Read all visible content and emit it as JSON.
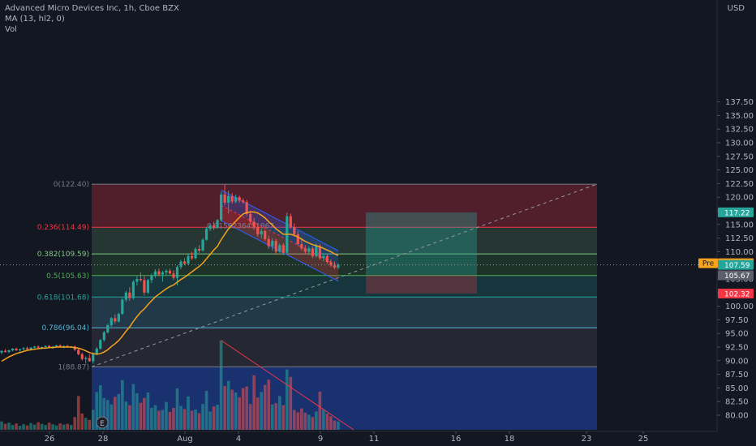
{
  "legend": {
    "symbol": "Advanced Micro Devices Inc, 1h, Cboe BZX",
    "ma": "MA (13, hl2, 0)",
    "vol": "Vol"
  },
  "chart_data": {
    "type": "candlestick",
    "currency": "USD",
    "y_ticks": [
      "137.50",
      "135.00",
      "132.50",
      "130.00",
      "127.50",
      "125.00",
      "122.50",
      "120.00",
      "117.50",
      "115.00",
      "112.50",
      "110.00",
      "107.50",
      "105.00",
      "102.50",
      "100.00",
      "97.50",
      "95.00",
      "92.50",
      "90.00",
      "87.50",
      "85.00",
      "82.50",
      "80.00"
    ],
    "x_ticks": [
      "26",
      "28",
      "Aug",
      "4",
      "9",
      "11",
      "16",
      "18",
      "23",
      "25"
    ],
    "fib_levels": [
      {
        "label": "0(122.40)",
        "price": 122.4,
        "color": "#787b86"
      },
      {
        "label": "0.236(114.49)",
        "price": 114.49,
        "color": "#f23645"
      },
      {
        "label": "0.382(109.59)",
        "price": 109.59,
        "color": "#81c784"
      },
      {
        "label": "0.5(105.63)",
        "price": 105.63,
        "color": "#4caf50"
      },
      {
        "label": "0.618(101.68)",
        "price": 101.68,
        "color": "#26a69a"
      },
      {
        "label": "0.786(96.04)",
        "price": 96.04,
        "color": "#56b4d3"
      },
      {
        "label": "1(88.87)",
        "price": 88.87,
        "color": "#787b86"
      }
    ],
    "channel_label": "0.9156236451967",
    "position": {
      "target": 117.22,
      "entry": 105.67,
      "stop": 102.32
    },
    "price_tags": [
      {
        "prefix": "",
        "text": "117.22",
        "price": 117.22,
        "color": "#26a69a"
      },
      {
        "prefix": "Pre",
        "text": "107.88",
        "price": 107.88,
        "color": "#f7a21b"
      },
      {
        "prefix": "",
        "text": "107.59",
        "price": 107.59,
        "color": "#26a69a"
      },
      {
        "prefix": "",
        "text": "105.67",
        "price": 105.67,
        "color": "#5d606b"
      },
      {
        "prefix": "",
        "text": "102.32",
        "price": 102.32,
        "color": "#f23645"
      }
    ],
    "candles": [
      [
        91.5,
        91.9,
        91.2,
        91.8
      ],
      [
        91.8,
        92.1,
        91.5,
        91.6
      ],
      [
        91.6,
        92.0,
        91.4,
        91.9
      ],
      [
        91.9,
        92.3,
        91.7,
        92.2
      ],
      [
        92.2,
        92.4,
        91.8,
        91.9
      ],
      [
        91.9,
        92.2,
        91.7,
        92.1
      ],
      [
        92.1,
        92.5,
        91.9,
        92.3
      ],
      [
        92.3,
        92.6,
        92.0,
        92.1
      ],
      [
        92.1,
        92.5,
        91.9,
        92.4
      ],
      [
        92.4,
        92.7,
        92.2,
        92.6
      ],
      [
        92.6,
        92.8,
        92.3,
        92.4
      ],
      [
        92.4,
        92.6,
        92.1,
        92.5
      ],
      [
        92.5,
        92.8,
        92.3,
        92.7
      ],
      [
        92.7,
        92.9,
        92.4,
        92.5
      ],
      [
        92.5,
        92.7,
        92.2,
        92.6
      ],
      [
        92.6,
        92.9,
        92.4,
        92.8
      ],
      [
        92.8,
        93.0,
        92.5,
        92.6
      ],
      [
        92.6,
        92.8,
        92.3,
        92.7
      ],
      [
        92.7,
        92.9,
        92.4,
        92.5
      ],
      [
        92.5,
        92.7,
        92.3,
        92.6
      ],
      [
        92.6,
        92.8,
        91.8,
        92.0
      ],
      [
        92.0,
        92.3,
        91.0,
        91.2
      ],
      [
        91.2,
        91.5,
        90.0,
        90.3
      ],
      [
        90.3,
        90.8,
        89.5,
        90.5
      ],
      [
        90.5,
        91.2,
        89.8,
        89.9
      ],
      [
        89.9,
        91.5,
        89.5,
        91.3
      ],
      [
        91.3,
        92.5,
        91.0,
        92.2
      ],
      [
        92.2,
        94.0,
        92.0,
        93.8
      ],
      [
        93.8,
        95.5,
        93.5,
        95.2
      ],
      [
        95.2,
        96.8,
        95.0,
        96.5
      ],
      [
        96.5,
        98.0,
        96.2,
        97.8
      ],
      [
        97.8,
        98.5,
        96.8,
        97.2
      ],
      [
        97.2,
        98.8,
        97.0,
        98.6
      ],
      [
        98.6,
        101.5,
        98.4,
        101.2
      ],
      [
        101.2,
        102.8,
        100.8,
        102.5
      ],
      [
        102.5,
        103.5,
        101.0,
        101.5
      ],
      [
        101.5,
        104.8,
        101.2,
        104.5
      ],
      [
        104.5,
        105.5,
        103.8,
        105.0
      ],
      [
        105.0,
        106.2,
        104.5,
        104.8
      ],
      [
        104.8,
        105.5,
        102.0,
        102.5
      ],
      [
        102.5,
        105.0,
        102.2,
        104.8
      ],
      [
        104.8,
        106.0,
        104.2,
        105.6
      ],
      [
        105.6,
        106.8,
        105.2,
        106.4
      ],
      [
        106.4,
        106.9,
        105.5,
        105.8
      ],
      [
        105.8,
        106.5,
        104.5,
        106.2
      ],
      [
        106.2,
        106.8,
        105.6,
        106.5
      ],
      [
        106.5,
        106.9,
        105.8,
        106.0
      ],
      [
        106.0,
        106.6,
        104.8,
        105.2
      ],
      [
        105.2,
        107.5,
        103.8,
        107.2
      ],
      [
        107.2,
        108.5,
        106.8,
        108.2
      ],
      [
        108.2,
        108.8,
        107.5,
        107.8
      ],
      [
        107.8,
        109.5,
        107.6,
        109.2
      ],
      [
        109.2,
        110.0,
        108.5,
        108.8
      ],
      [
        108.8,
        110.8,
        108.6,
        110.5
      ],
      [
        110.5,
        111.2,
        109.8,
        110.2
      ],
      [
        110.2,
        112.5,
        110.0,
        112.2
      ],
      [
        112.2,
        114.5,
        112.0,
        114.2
      ],
      [
        114.2,
        115.2,
        113.8,
        114.8
      ],
      [
        114.8,
        115.5,
        114.0,
        114.4
      ],
      [
        114.4,
        116.0,
        114.2,
        115.8
      ],
      [
        115.8,
        121.0,
        115.5,
        120.5
      ],
      [
        120.5,
        122.4,
        118.5,
        119.0
      ],
      [
        119.0,
        121.2,
        117.0,
        120.2
      ],
      [
        120.2,
        120.8,
        118.8,
        119.2
      ],
      [
        119.2,
        120.5,
        118.9,
        120.0
      ],
      [
        120.0,
        120.3,
        119.0,
        119.4
      ],
      [
        119.4,
        119.8,
        118.8,
        119.1
      ],
      [
        119.1,
        119.5,
        116.5,
        116.9
      ],
      [
        116.9,
        117.5,
        115.0,
        115.5
      ],
      [
        115.5,
        116.2,
        114.0,
        114.5
      ],
      [
        114.5,
        115.0,
        112.8,
        113.2
      ],
      [
        113.2,
        114.2,
        112.5,
        113.8
      ],
      [
        113.8,
        114.0,
        112.0,
        112.3
      ],
      [
        112.3,
        113.0,
        110.5,
        111.0
      ],
      [
        111.0,
        112.5,
        110.2,
        112.0
      ],
      [
        112.0,
        112.4,
        109.5,
        110.0
      ],
      [
        110.0,
        111.5,
        109.8,
        111.2
      ],
      [
        111.2,
        111.6,
        109.4,
        109.8
      ],
      [
        109.8,
        117.2,
        109.6,
        116.5
      ],
      [
        116.5,
        117.0,
        114.2,
        114.5
      ],
      [
        114.5,
        115.2,
        112.8,
        113.2
      ],
      [
        113.2,
        113.8,
        111.0,
        111.4
      ],
      [
        111.4,
        112.5,
        110.2,
        110.6
      ],
      [
        110.6,
        111.2,
        109.5,
        110.0
      ],
      [
        110.0,
        111.0,
        109.4,
        110.6
      ],
      [
        110.6,
        111.0,
        108.8,
        109.2
      ],
      [
        109.2,
        111.5,
        108.9,
        111.0
      ],
      [
        111.0,
        111.4,
        108.5,
        108.8
      ],
      [
        108.8,
        109.6,
        108.2,
        109.2
      ],
      [
        109.2,
        109.5,
        107.8,
        108.1
      ],
      [
        108.1,
        108.6,
        107.2,
        107.5
      ],
      [
        107.5,
        108.2,
        106.8,
        107.1
      ],
      [
        107.1,
        107.9,
        106.8,
        107.6
      ]
    ],
    "ma": [
      89.9,
      90.3,
      90.7,
      91.0,
      91.3,
      91.5,
      91.7,
      91.9,
      92.0,
      92.1,
      92.2,
      92.3,
      92.3,
      92.4,
      92.4,
      92.5,
      92.5,
      92.5,
      92.5,
      92.5,
      92.4,
      92.3,
      92.1,
      91.8,
      91.5,
      91.3,
      91.2,
      91.3,
      91.6,
      92.0,
      92.6,
      93.1,
      93.7,
      94.5,
      95.4,
      96.2,
      97.2,
      98.1,
      98.9,
      99.5,
      100.3,
      101.0,
      101.7,
      102.2,
      102.7,
      103.2,
      103.6,
      103.9,
      104.4,
      104.9,
      105.3,
      105.8,
      106.3,
      106.8,
      107.3,
      107.9,
      108.7,
      109.5,
      110.3,
      111.0,
      112.2,
      113.2,
      114.2,
      114.9,
      115.6,
      116.3,
      116.9,
      117.2,
      117.3,
      117.3,
      117.1,
      116.7,
      116.2,
      115.5,
      114.9,
      114.2,
      113.7,
      113.2,
      113.2,
      113.2,
      113.0,
      112.7,
      112.3,
      111.9,
      111.6,
      111.3,
      111.1,
      110.9,
      110.6,
      110.3,
      110.0,
      109.6,
      109.3
    ],
    "volume": [
      2.1,
      1.5,
      1.8,
      1.2,
      1.6,
      1.0,
      1.4,
      1.1,
      1.7,
      1.3,
      1.9,
      1.5,
      1.2,
      1.8,
      1.4,
      1.1,
      1.6,
      1.3,
      1.5,
      1.2,
      3.2,
      8.5,
      4.1,
      3.0,
      2.5,
      5.0,
      9.5,
      11.2,
      8.0,
      7.5,
      6.4,
      8.3,
      9.0,
      12.5,
      7.1,
      6.2,
      11.5,
      9.2,
      6.8,
      8.0,
      9.4,
      5.5,
      6.2,
      4.8,
      5.0,
      7.0,
      4.5,
      5.5,
      10.4,
      6.0,
      5.2,
      8.4,
      4.8,
      5.1,
      4.2,
      6.5,
      9.8,
      4.6,
      5.9,
      6.3,
      22.5,
      11.0,
      12.3,
      10.1,
      9.4,
      8.2,
      10.5,
      10.9,
      6.5,
      13.7,
      8.1,
      9.5,
      11.3,
      12.6,
      6.4,
      6.7,
      8.5,
      6.2,
      15.2,
      13.3,
      5.0,
      4.4,
      5.4,
      4.3,
      3.8,
      3.2,
      4.6,
      9.6,
      5.1,
      4.1,
      3.4,
      2.3,
      2.1
    ]
  }
}
